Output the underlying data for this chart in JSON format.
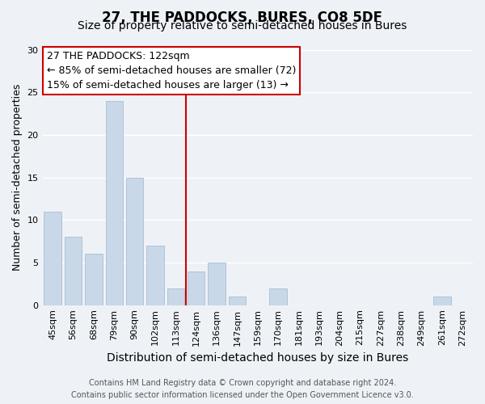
{
  "title": "27, THE PADDOCKS, BURES, CO8 5DF",
  "subtitle": "Size of property relative to semi-detached houses in Bures",
  "xlabel": "Distribution of semi-detached houses by size in Bures",
  "ylabel": "Number of semi-detached properties",
  "bar_labels": [
    "45sqm",
    "56sqm",
    "68sqm",
    "79sqm",
    "90sqm",
    "102sqm",
    "113sqm",
    "124sqm",
    "136sqm",
    "147sqm",
    "159sqm",
    "170sqm",
    "181sqm",
    "193sqm",
    "204sqm",
    "215sqm",
    "227sqm",
    "238sqm",
    "249sqm",
    "261sqm",
    "272sqm"
  ],
  "bar_heights": [
    11,
    8,
    6,
    24,
    15,
    7,
    2,
    4,
    5,
    1,
    0,
    2,
    0,
    0,
    0,
    0,
    0,
    0,
    0,
    1,
    0
  ],
  "bar_color": "#c8d8e8",
  "bar_edge_color": "#a8bece",
  "vline_x_index": 7,
  "vline_color": "#cc0000",
  "annotation_title": "27 THE PADDOCKS: 122sqm",
  "annotation_line1": "← 85% of semi-detached houses are smaller (72)",
  "annotation_line2": "15% of semi-detached houses are larger (13) →",
  "annotation_box_facecolor": "#ffffff",
  "annotation_box_edgecolor": "#cc0000",
  "ylim": [
    0,
    30
  ],
  "yticks": [
    0,
    5,
    10,
    15,
    20,
    25,
    30
  ],
  "footer_line1": "Contains HM Land Registry data © Crown copyright and database right 2024.",
  "footer_line2": "Contains public sector information licensed under the Open Government Licence v3.0.",
  "bg_color": "#eef2f7",
  "plot_bg_color": "#eef2f7",
  "grid_color": "#ffffff",
  "title_fontsize": 12,
  "subtitle_fontsize": 10,
  "ylabel_fontsize": 9,
  "xlabel_fontsize": 10,
  "tick_fontsize": 8,
  "annotation_fontsize": 9,
  "footer_fontsize": 7
}
